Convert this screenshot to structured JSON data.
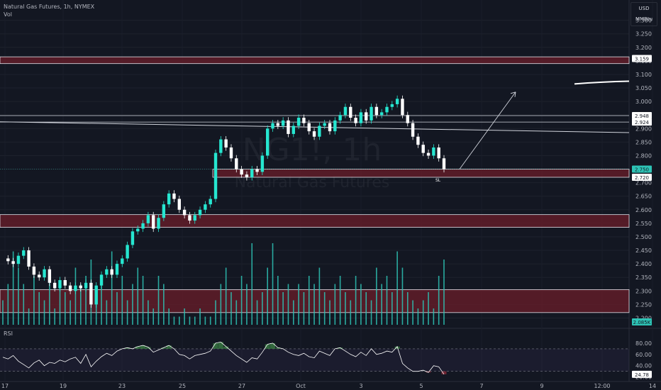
{
  "header": {
    "symbol_line": "Natural Gas Futures, 1h, NYMEX",
    "volume_label": "Vol",
    "rsi_label": "RSI"
  },
  "currency_box": {
    "currency": "USD",
    "unit": "MMBtu"
  },
  "watermark": {
    "ticker": "NG1!, 1h",
    "name": "Natural Gas Futures"
  },
  "annotations": {
    "sl_label": "SL"
  },
  "colors": {
    "background": "#131722",
    "candle_up": "#26e6d0",
    "candle_down": "#ffffff",
    "zone_fill": "#6b1e2a",
    "zone_border": "#e0e3eb",
    "volume_bar": "#2ec4b6",
    "rsi_line": "#ffffff",
    "rsi_overbought_fill": "#3a7d44",
    "rsi_oversold_fill": "#8b2a3a",
    "price_badge_current": "#2ec4b6"
  },
  "chart_data": [
    {
      "type": "line",
      "title": "Natural Gas Futures, 1h, NYMEX",
      "ylabel": "USD/MMBtu",
      "ylim": [
        2.175,
        3.375
      ],
      "y_ticks": [
        "3.300",
        "3.250",
        "3.200",
        "3.150",
        "3.100",
        "3.050",
        "3.000",
        "2.950",
        "2.900",
        "2.850",
        "2.800",
        "2.750",
        "2.700",
        "2.650",
        "2.600",
        "2.550",
        "2.500",
        "2.450",
        "2.400",
        "2.350",
        "2.300",
        "2.250",
        "2.200"
      ],
      "x_ticks": [
        "17",
        "19",
        "23",
        "25",
        "27",
        "Oct",
        "3",
        "5",
        "7",
        "9",
        "12:00",
        "14"
      ],
      "price_labels": [
        "3.159",
        "2.948",
        "2.924",
        "2.750",
        "2.720"
      ],
      "series": [
        {
          "name": "",
          "values": [
            2.42,
            2.41,
            2.4,
            2.43,
            2.45,
            2.39,
            2.36,
            2.35,
            2.38,
            2.33,
            2.31,
            2.34,
            2.32,
            2.3,
            2.32,
            2.31,
            2.33,
            2.25,
            2.32,
            2.36,
            2.38,
            2.36,
            2.4,
            2.42,
            2.47,
            2.52,
            2.53,
            2.55,
            2.58,
            2.53,
            2.57,
            2.62,
            2.66,
            2.64,
            2.6,
            2.58,
            2.56,
            2.58,
            2.6,
            2.62,
            2.64,
            2.81,
            2.86,
            2.83,
            2.79,
            2.75,
            2.73,
            2.72,
            2.75,
            2.74,
            2.8,
            2.9,
            2.92,
            2.91,
            2.93,
            2.88,
            2.91,
            2.94,
            2.92,
            2.89,
            2.87,
            2.91,
            2.92,
            2.89,
            2.93,
            2.95,
            2.98,
            2.94,
            2.92,
            2.96,
            2.93,
            2.98,
            2.95,
            2.96,
            2.98,
            2.99,
            3.01,
            2.95,
            2.92,
            2.87,
            2.84,
            2.81,
            2.8,
            2.83,
            2.79,
            2.75
          ]
        }
      ],
      "zones": [
        {
          "low": 3.14,
          "high": 3.165
        },
        {
          "low": 2.72,
          "high": 2.75
        },
        {
          "low": 2.535,
          "high": 2.582
        },
        {
          "low": 2.22,
          "high": 2.305
        }
      ],
      "levels": [
        2.948,
        2.924
      ],
      "trend_lines": [
        {
          "from": [
            "17",
            2.925
          ],
          "to": [
            "14",
            2.885
          ]
        }
      ],
      "projection_arrow": {
        "from": 2.75,
        "to": 3.035
      },
      "current_price": 2.75
    },
    {
      "type": "bar",
      "title": "",
      "ylabel": "Vol",
      "current_badge": "2.085K",
      "values": [
        0.3,
        0.5,
        0.9,
        0.7,
        0.5,
        0.2,
        0.6,
        0.4,
        0.3,
        0.6,
        0.2,
        0.5,
        0.4,
        0.3,
        0.7,
        0.5,
        0.6,
        0.8,
        0.4,
        0.5,
        0.3,
        0.9,
        0.4,
        0.6,
        0.3,
        0.5,
        0.7,
        0.6,
        0.3,
        0.2,
        0.6,
        0.5,
        0.2,
        0.1,
        0.1,
        0.2,
        0.1,
        0.1,
        0.2,
        0.1,
        0.1,
        0.3,
        0.5,
        0.7,
        0.4,
        0.3,
        0.6,
        0.5,
        1.0,
        0.3,
        0.4,
        0.7,
        1.0,
        0.6,
        0.4,
        0.5,
        0.3,
        0.5,
        0.4,
        0.6,
        0.5,
        0.7,
        0.4,
        0.3,
        0.5,
        0.6,
        0.4,
        0.3,
        0.6,
        0.5,
        0.4,
        0.3,
        0.7,
        0.5,
        0.6,
        0.4,
        0.9,
        0.7,
        0.4,
        0.3,
        0.2,
        0.3,
        0.4,
        0.2,
        0.6,
        0.8
      ]
    },
    {
      "type": "line",
      "title": "RSI",
      "ylim": [
        17,
        90
      ],
      "y_ticks": [
        "80.00",
        "60.00",
        "40.00",
        "20.00"
      ],
      "price_labels": [
        "24.78"
      ],
      "bands": [
        70,
        30
      ],
      "series": [
        {
          "name": "",
          "values": [
            55,
            52,
            58,
            48,
            42,
            36,
            45,
            50,
            40,
            46,
            44,
            50,
            47,
            52,
            55,
            44,
            60,
            38,
            48,
            56,
            62,
            58,
            66,
            70,
            72,
            70,
            74,
            76,
            73,
            64,
            68,
            72,
            76,
            70,
            60,
            58,
            52,
            58,
            60,
            62,
            66,
            80,
            82,
            74,
            66,
            58,
            52,
            46,
            54,
            52,
            64,
            78,
            80,
            72,
            70,
            64,
            60,
            58,
            62,
            56,
            54,
            66,
            62,
            58,
            70,
            72,
            66,
            60,
            56,
            64,
            58,
            70,
            60,
            62,
            66,
            64,
            74,
            44,
            36,
            30,
            30,
            32,
            28,
            40,
            38,
            24.78
          ]
        }
      ]
    }
  ]
}
